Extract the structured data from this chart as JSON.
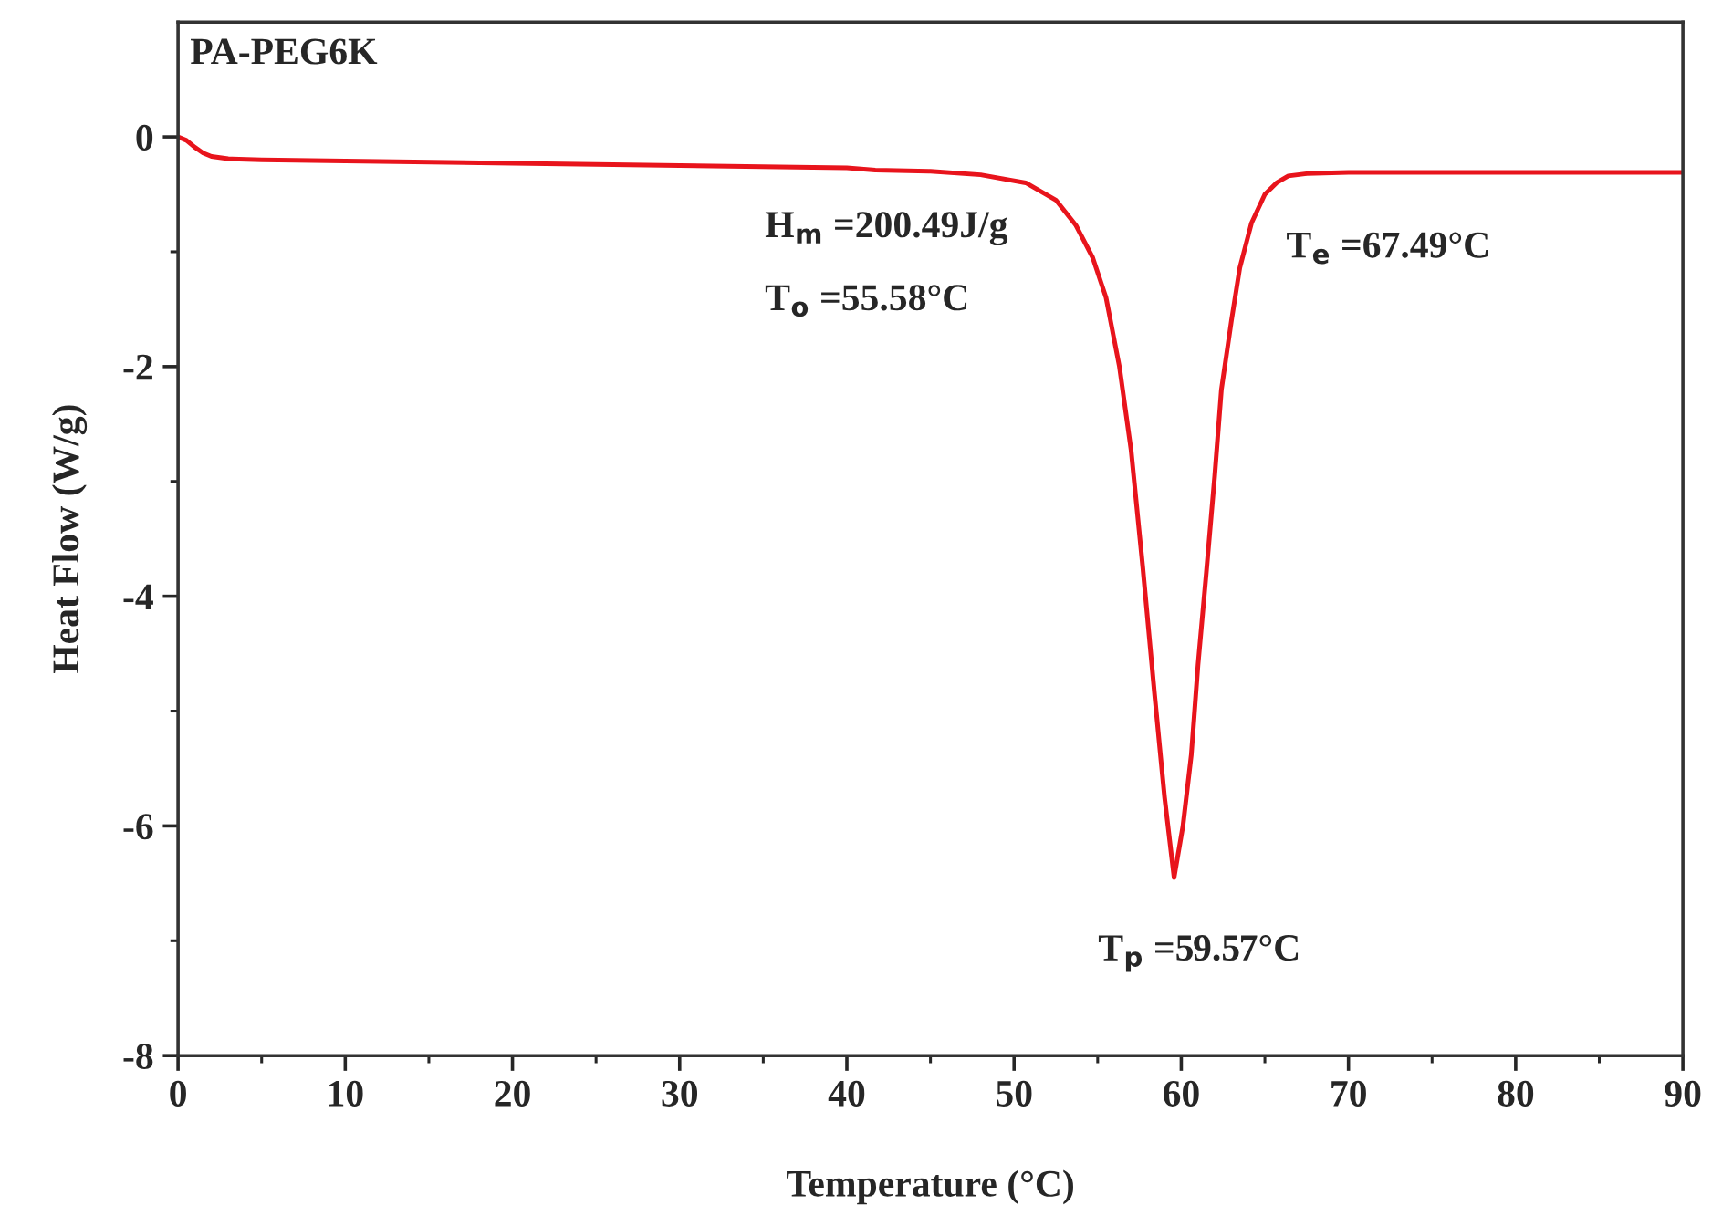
{
  "chart_data": {
    "type": "line",
    "title": "PA-PEG6K",
    "xlabel": "Temperature (°C)",
    "ylabel": "Heat Flow (W/g)",
    "x": [
      0,
      0.5,
      1,
      1.5,
      2,
      3,
      5,
      10,
      20,
      30,
      40,
      41.7,
      45,
      48,
      50.7,
      52.5,
      53.7,
      54.7,
      55.5,
      56.3,
      57.0,
      57.7,
      58.4,
      59.0,
      59.57,
      60.1,
      60.6,
      61.0,
      61.5,
      62.0,
      62.4,
      63.0,
      63.5,
      64.2,
      65.0,
      65.7,
      66.4,
      67.5,
      70,
      75,
      80,
      90
    ],
    "series": [
      {
        "color": "#e8141c",
        "values": [
          0.0,
          -0.03,
          -0.09,
          -0.14,
          -0.17,
          -0.19,
          -0.2,
          -0.21,
          -0.23,
          -0.25,
          -0.27,
          -0.29,
          -0.3,
          -0.33,
          -0.4,
          -0.55,
          -0.77,
          -1.05,
          -1.4,
          -2.0,
          -2.73,
          -3.75,
          -4.85,
          -5.75,
          -6.45,
          -6.0,
          -5.38,
          -4.6,
          -3.79,
          -2.95,
          -2.2,
          -1.6,
          -1.14,
          -0.75,
          -0.5,
          -0.4,
          -0.34,
          -0.32,
          -0.31,
          -0.31,
          -0.31,
          -0.31
        ]
      }
    ],
    "xlim": [
      0,
      90
    ],
    "xticks": [
      0,
      10,
      20,
      30,
      40,
      50,
      60,
      70,
      80,
      90
    ],
    "ylim": [
      -8,
      1
    ],
    "yticks": [
      -8,
      -6,
      -4,
      -2,
      0
    ],
    "grid": false,
    "legend": false,
    "marker": "none",
    "line_style": "solid",
    "annotations": [
      "H$_{m}$ =200.49J/g",
      "T$_{o}$ =55.58°C",
      {
        "text": "T$_{p}$ =59.57°C",
        "x": 59.57,
        "y": -6.45
      },
      {
        "text": "T$_{e}$ =67.49°C",
        "x": 67.49,
        "y": -0.31
      }
    ]
  }
}
